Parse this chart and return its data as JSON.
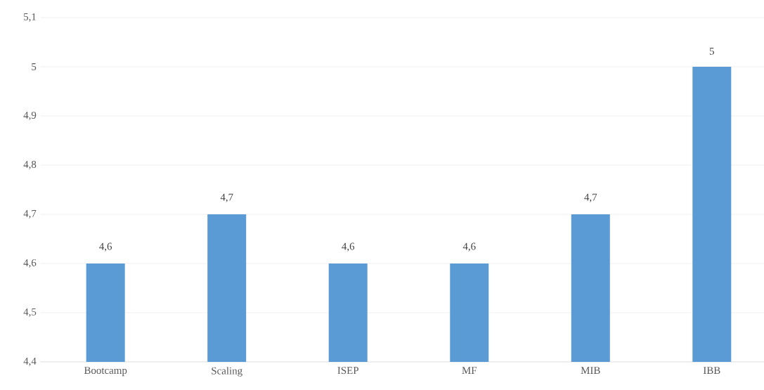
{
  "chart_data": {
    "type": "bar",
    "categories": [
      "Bootcamp",
      "Scaling",
      "ISEP",
      "MF",
      "MIB",
      "IBB"
    ],
    "values": [
      4.6,
      4.7,
      4.6,
      4.6,
      4.7,
      5
    ],
    "value_labels": [
      "4,6",
      "4,7",
      "4,6",
      "4,6",
      "4,7",
      "5"
    ],
    "color": "#5b9bd5",
    "ylim": [
      4.4,
      5.1
    ],
    "yticks": [
      {
        "value": 4.4,
        "label": "4,4"
      },
      {
        "value": 4.5,
        "label": "4,5"
      },
      {
        "value": 4.6,
        "label": "4,6"
      },
      {
        "value": 4.7,
        "label": "4,7"
      },
      {
        "value": 4.8,
        "label": "4,8"
      },
      {
        "value": 4.9,
        "label": "4,9"
      },
      {
        "value": 5,
        "label": "5"
      },
      {
        "value": 5.1,
        "label": "5,1"
      }
    ],
    "grid": "y"
  }
}
